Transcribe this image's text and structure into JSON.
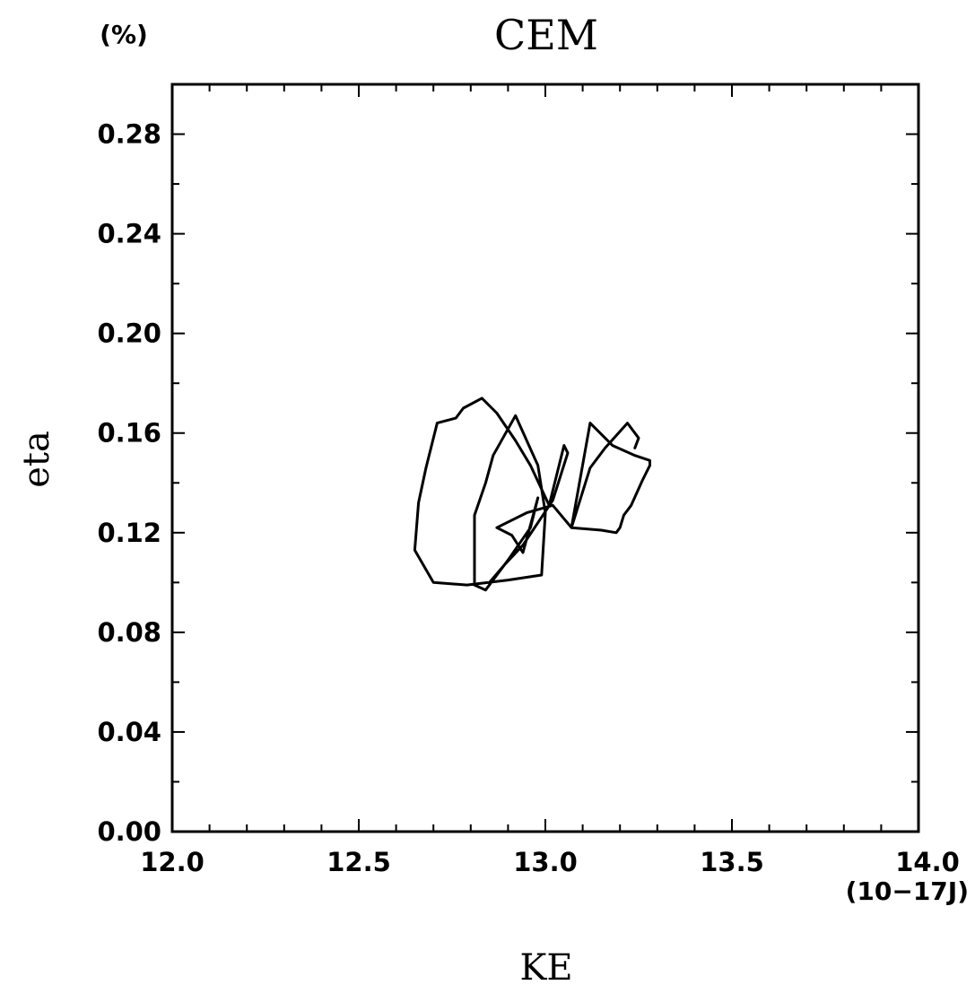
{
  "chart_data": {
    "type": "line",
    "title": "CEM",
    "xlabel": "KE",
    "ylabel": "eta",
    "x_unit": "(10−17J)",
    "y_unit": "(%)",
    "xlim": [
      12.0,
      14.0
    ],
    "ylim": [
      0.0,
      0.3
    ],
    "x_ticks": [
      "12.0",
      "12.5",
      "13.0",
      "13.5",
      "14.0"
    ],
    "y_ticks": [
      "0.00",
      "0.04",
      "0.08",
      "0.12",
      "0.16",
      "0.20",
      "0.24",
      "0.28"
    ],
    "grid": false,
    "series": [
      {
        "x": [
          12.85,
          12.89,
          12.94,
          12.98,
          13.02,
          13.06,
          13.05,
          13.01,
          12.96,
          12.92,
          12.87,
          12.83,
          12.78,
          12.76,
          12.71,
          12.68,
          12.66,
          12.65,
          12.7,
          12.79,
          12.9,
          12.99,
          13.0,
          12.98,
          12.92,
          12.86,
          12.84,
          12.81,
          12.81,
          12.84,
          12.9,
          12.96,
          12.98,
          12.94,
          12.91,
          12.87,
          12.95,
          13.02,
          13.07,
          13.15,
          13.19,
          13.2,
          13.21,
          13.23,
          13.26,
          13.28,
          13.28,
          13.24,
          13.18,
          13.12,
          13.07,
          13.12,
          13.16,
          13.22,
          13.25,
          13.24
        ],
        "y": [
          0.1,
          0.107,
          0.115,
          0.124,
          0.133,
          0.152,
          0.155,
          0.131,
          0.147,
          0.157,
          0.168,
          0.174,
          0.17,
          0.166,
          0.164,
          0.146,
          0.132,
          0.113,
          0.1,
          0.099,
          0.101,
          0.103,
          0.128,
          0.147,
          0.167,
          0.151,
          0.14,
          0.127,
          0.099,
          0.097,
          0.109,
          0.122,
          0.134,
          0.112,
          0.119,
          0.122,
          0.128,
          0.131,
          0.122,
          0.121,
          0.12,
          0.122,
          0.127,
          0.131,
          0.141,
          0.147,
          0.149,
          0.151,
          0.155,
          0.164,
          0.122,
          0.146,
          0.154,
          0.164,
          0.158,
          0.154
        ]
      }
    ]
  }
}
